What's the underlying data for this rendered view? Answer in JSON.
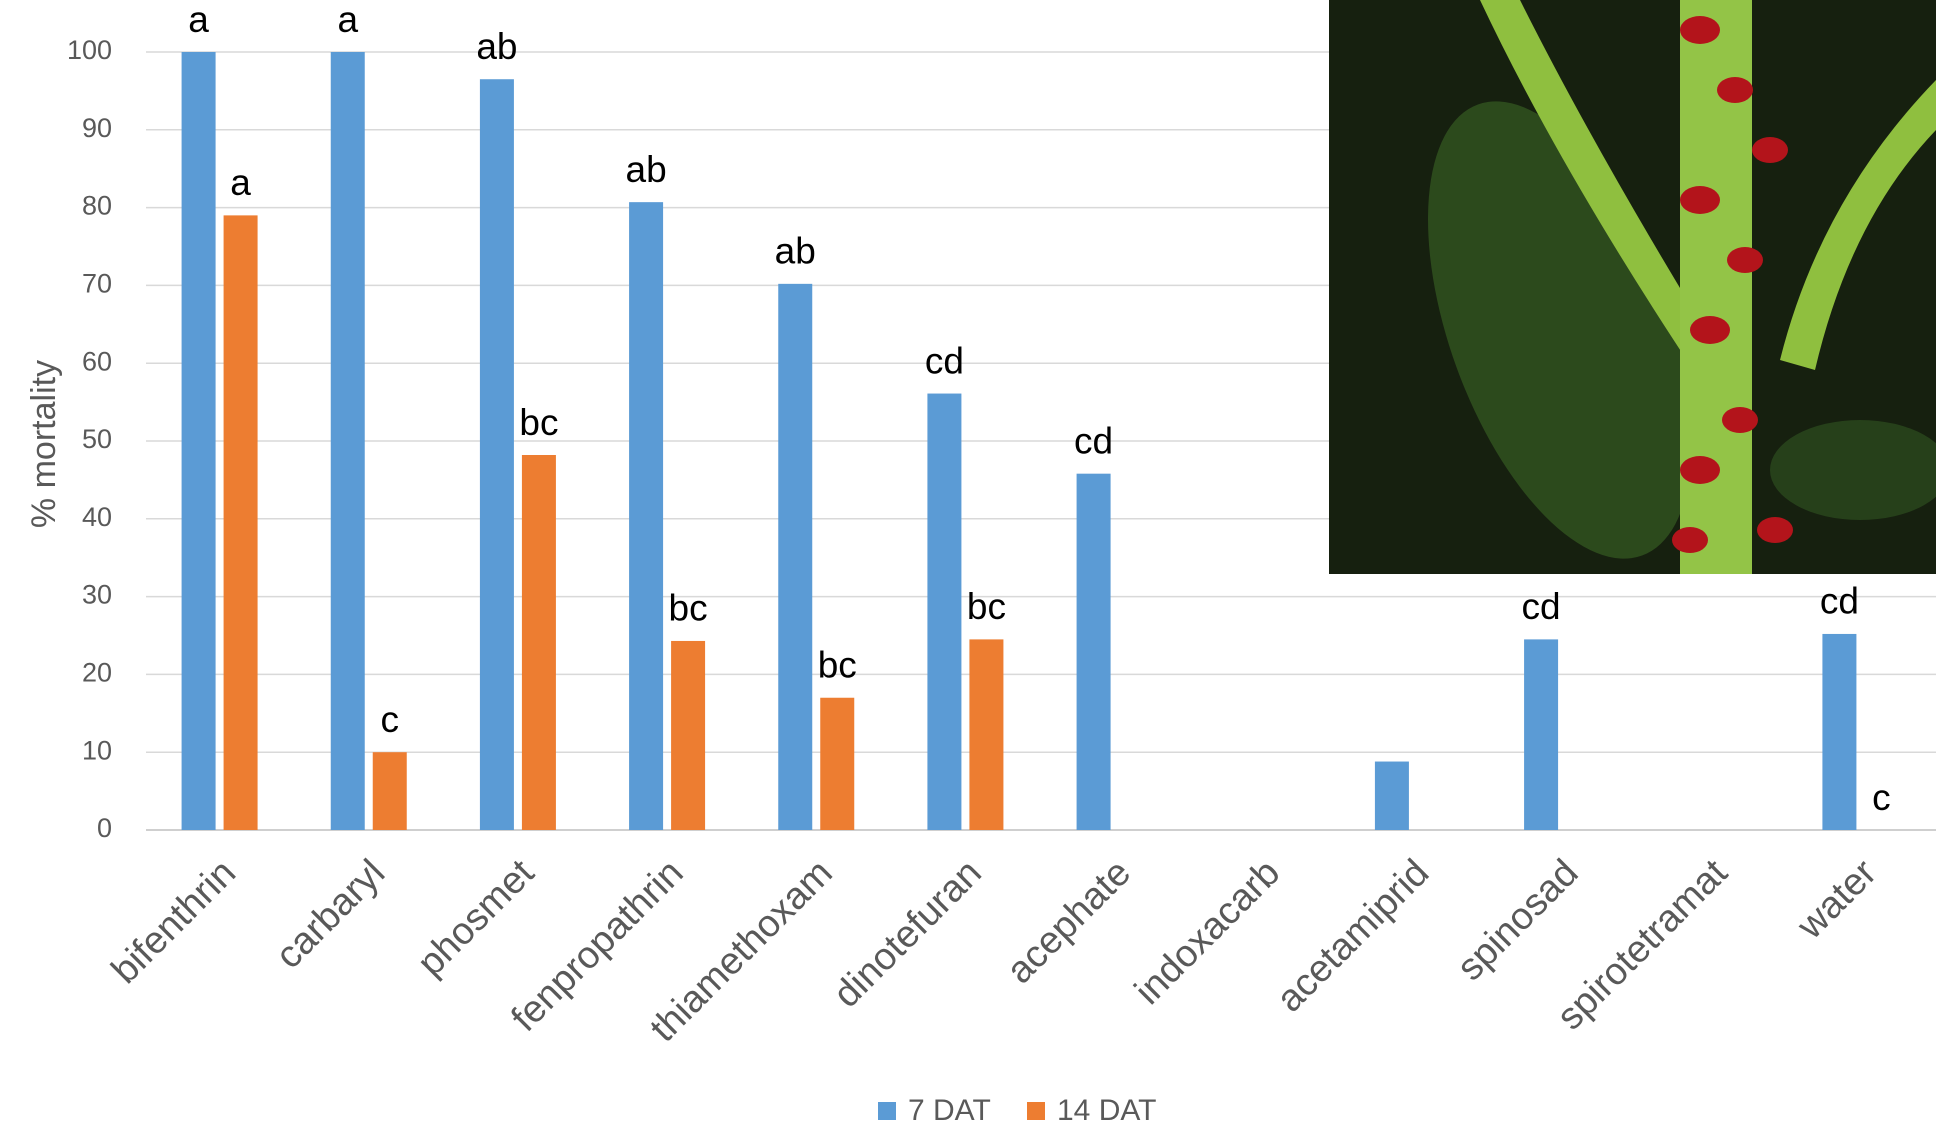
{
  "chart_data": {
    "type": "bar",
    "y_label": "% mortality",
    "categories": [
      "bifenthrin",
      "carbaryl",
      "phosmet",
      "fenpropathrin",
      "thiamethoxam",
      "dinotefuran",
      "acephate",
      "indoxacarb",
      "acetamiprid",
      "spinosad",
      "spirotetramat",
      "water"
    ],
    "series": [
      {
        "name": "7 DAT",
        "color": "#5b9bd5",
        "values": [
          100,
          100,
          96.5,
          80.7,
          70.2,
          56.1,
          45.8,
          null,
          8.8,
          24.5,
          null,
          25.2
        ],
        "letters": [
          "a",
          "a",
          "ab",
          "ab",
          "ab",
          "cd",
          "cd",
          null,
          null,
          "cd",
          null,
          "cd"
        ]
      },
      {
        "name": "14 DAT",
        "color": "#ed7d31",
        "values": [
          79,
          10,
          48.2,
          24.3,
          17,
          24.5,
          null,
          null,
          null,
          null,
          null,
          0
        ],
        "letters": [
          "a",
          "c",
          "bc",
          "bc",
          "bc",
          "bc",
          null,
          null,
          null,
          null,
          null,
          "c"
        ]
      }
    ],
    "ylim": [
      0,
      100
    ],
    "yticks": [
      0,
      10,
      20,
      30,
      40,
      50,
      60,
      70,
      80,
      90,
      100
    ],
    "grid": true,
    "legend": "bottom"
  }
}
